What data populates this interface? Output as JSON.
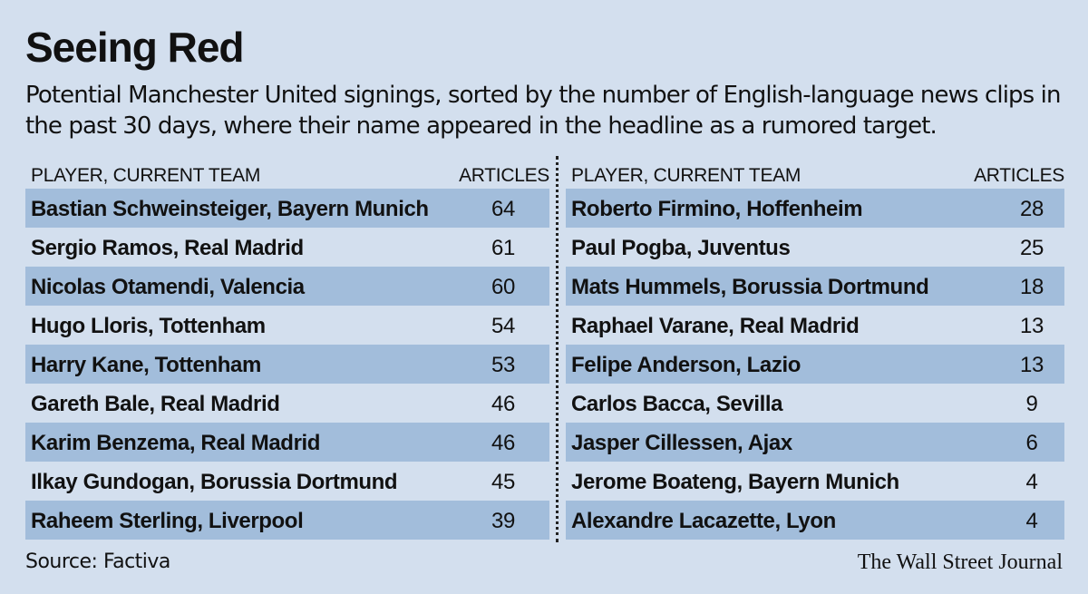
{
  "title": "Seeing Red",
  "subtitle": "Potential Manchester United signings, sorted by the number of English-language news clips in the past 30 days, where their name appeared in the headline as a rumored target.",
  "chart_data": {
    "type": "table",
    "columns": [
      "PLAYER, CURRENT TEAM",
      "ARTICLES"
    ],
    "left_rows": [
      {
        "player": "Bastian Schweinsteiger, Bayern Munich",
        "articles": 64
      },
      {
        "player": "Sergio Ramos, Real Madrid",
        "articles": 61
      },
      {
        "player": "Nicolas Otamendi, Valencia",
        "articles": 60
      },
      {
        "player": "Hugo Lloris, Tottenham",
        "articles": 54
      },
      {
        "player": "Harry Kane, Tottenham",
        "articles": 53
      },
      {
        "player": "Gareth Bale, Real Madrid",
        "articles": 46
      },
      {
        "player": "Karim Benzema, Real Madrid",
        "articles": 46
      },
      {
        "player": "Ilkay Gundogan, Borussia Dortmund",
        "articles": 45
      },
      {
        "player": "Raheem Sterling, Liverpool",
        "articles": 39
      }
    ],
    "right_rows": [
      {
        "player": "Roberto Firmino, Hoffenheim",
        "articles": 28
      },
      {
        "player": "Paul Pogba, Juventus",
        "articles": 25
      },
      {
        "player": "Mats Hummels, Borussia Dortmund",
        "articles": 18
      },
      {
        "player": "Raphael Varane, Real Madrid",
        "articles": 13
      },
      {
        "player": "Felipe Anderson, Lazio",
        "articles": 13
      },
      {
        "player": "Carlos Bacca, Sevilla",
        "articles": 9
      },
      {
        "player": "Jasper Cillessen, Ajax",
        "articles": 6
      },
      {
        "player": "Jerome Boateng, Bayern Munich",
        "articles": 4
      },
      {
        "player": "Alexandre Lacazette, Lyon",
        "articles": 4
      }
    ]
  },
  "footer": {
    "source": "Source: Factiva",
    "credit": "The Wall Street Journal"
  },
  "colors": {
    "background": "#d3dfee",
    "row_shade": "#a2bddb"
  }
}
